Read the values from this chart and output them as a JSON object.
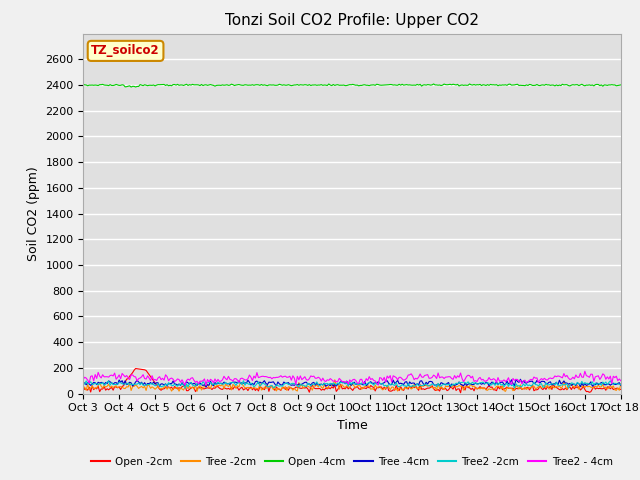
{
  "title": "Tonzi Soil CO2 Profile: Upper CO2",
  "xlabel": "Time",
  "ylabel": "Soil CO2 (ppm)",
  "ylim": [
    0,
    2800
  ],
  "yticks": [
    0,
    200,
    400,
    600,
    800,
    1000,
    1200,
    1400,
    1600,
    1800,
    2000,
    2200,
    2400,
    2600
  ],
  "x_labels": [
    "Oct 3",
    "Oct 4",
    "Oct 5",
    "Oct 6",
    "Oct 7",
    "Oct 8",
    "Oct 9",
    "Oct 10",
    "Oct 11",
    "Oct 12",
    "Oct 13",
    "Oct 14",
    "Oct 15",
    "Oct 16",
    "Oct 17",
    "Oct 18"
  ],
  "n_points": 360,
  "series_names": [
    "Open -2cm",
    "Tree -2cm",
    "Open -4cm",
    "Tree -4cm",
    "Tree2 -2cm",
    "Tree2 - 4cm"
  ],
  "series_colors": [
    "#ff0000",
    "#ff8c00",
    "#00cc00",
    "#0000cc",
    "#00cccc",
    "#ff00ff"
  ],
  "legend_label": "TZ_soilco2",
  "legend_box_facecolor": "#ffffcc",
  "legend_box_edgecolor": "#cc8800",
  "background_color": "#e0e0e0",
  "grid_color": "#ffffff",
  "fig_facecolor": "#f0f0f0",
  "title_fontsize": 11,
  "axis_fontsize": 9,
  "tick_fontsize": 8
}
